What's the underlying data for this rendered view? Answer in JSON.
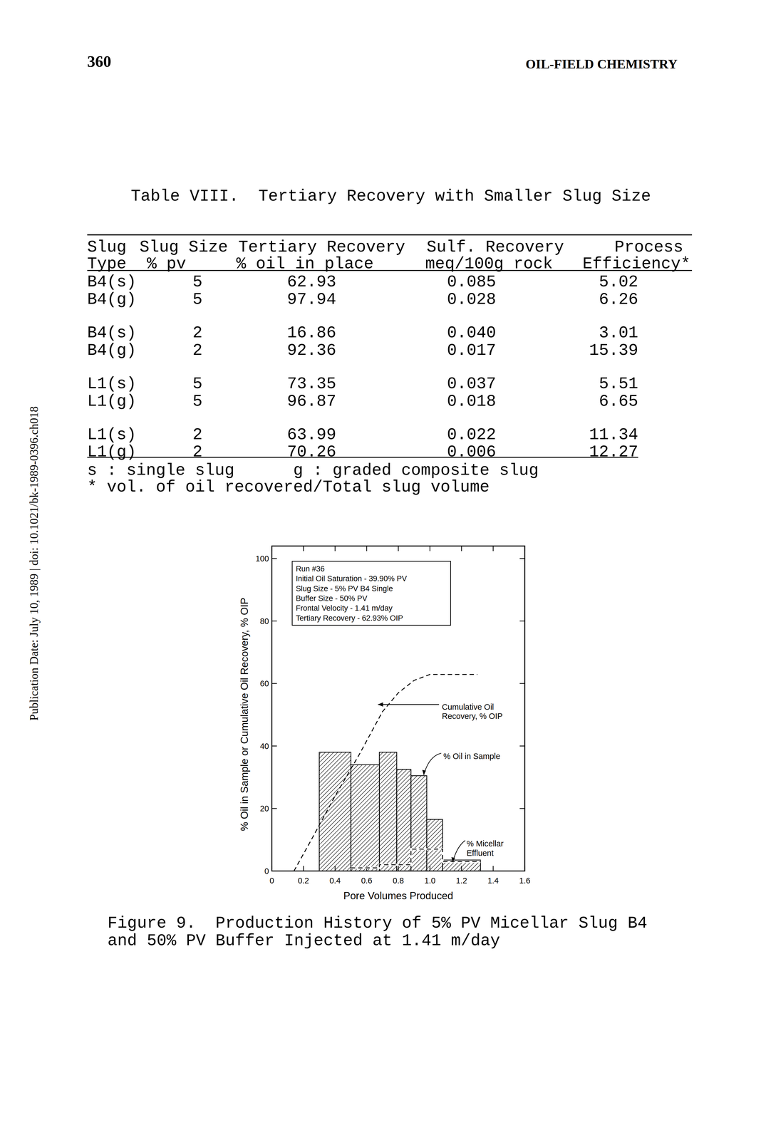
{
  "header": {
    "page_number": "360",
    "running_title": "OIL-FIELD CHEMISTRY"
  },
  "side_note": "Publication Date: July 10, 1989 | doi: 10.1021/bk-1989-0396.ch018",
  "table": {
    "title": "Table VIII.  Tertiary Recovery with Smaller Slug Size",
    "header": [
      [
        "Slug",
        "Slug Size",
        "Tertiary Recovery",
        "Sulf. Recovery",
        "Process"
      ],
      [
        "Type",
        "% pv",
        "% oil in place",
        "meq/100g rock",
        "Efficiency*"
      ]
    ],
    "rows": [
      [
        "B4(s)",
        "5",
        "62.93",
        "0.085",
        "5.02"
      ],
      [
        "B4(g)",
        "5",
        "97.94",
        "0.028",
        "6.26"
      ],
      [
        "B4(s)",
        "2",
        "16.86",
        "0.040",
        "3.01"
      ],
      [
        "B4(g)",
        "2",
        "92.36",
        "0.017",
        "15.39"
      ],
      [
        "L1(s)",
        "5",
        "73.35",
        "0.037",
        "5.51"
      ],
      [
        "L1(g)",
        "5",
        "96.87",
        "0.018",
        "6.65"
      ],
      [
        "L1(s)",
        "2",
        "63.99",
        "0.022",
        "11.34"
      ],
      [
        "L1(g)",
        "2",
        "70.26",
        "0.006",
        "12.27"
      ]
    ],
    "footnotes": [
      "s : single slug      g : graded composite slug",
      "* vol. of oil recovered/Total slug volume"
    ]
  },
  "chart_data": {
    "type": "histogram",
    "x_label": "Pore Volumes Produced",
    "y_label": "% Oil in Sample or Cumulative Oil Recovery, % OIP",
    "text_box": [
      "Run #36",
      "Initial Oil Saturation - 39.90% PV",
      "Slug Size - 5% PV B4 Single",
      "Buffer Size - 50% PV",
      "Frontal Velocity - 1.41 m/day",
      "Tertiary Recovery - 62.93% OIP"
    ],
    "xlim": [
      0,
      1.6
    ],
    "xticks": [
      0,
      0.2,
      0.4,
      0.6,
      0.8,
      {
        "value": 1,
        "label": "1.0"
      },
      1.2,
      1.4,
      1.6
    ],
    "ylim": [
      0,
      104
    ],
    "yticks": [
      0,
      20,
      40,
      60,
      80,
      100
    ],
    "series": [
      {
        "name": "Cumulative Oil Recovery, % OIP",
        "type": "line",
        "line_style": "dashed",
        "color": "#000000",
        "x": [
          0.14,
          0.25,
          0.4,
          0.55,
          0.7,
          0.8,
          0.9,
          1.0,
          1.3
        ],
        "values": [
          0,
          10,
          24,
          37,
          51,
          57,
          61,
          62.9,
          62.9
        ]
      },
      {
        "name": "% Oil in Sample",
        "type": "histogram",
        "color": "#000000",
        "bins": [
          0.3,
          0.5,
          0.68,
          0.79,
          0.88,
          0.98,
          1.08,
          1.32
        ],
        "values": [
          38,
          34,
          38,
          32.5,
          30.5,
          16.5,
          3.5
        ]
      },
      {
        "name": "% Micellar Effluent",
        "type": "line",
        "line_style": "dashed",
        "color": "#000000",
        "x": [
          0.5,
          0.68,
          0.68,
          0.88,
          0.88,
          1.08,
          1.08,
          1.32
        ],
        "values": [
          1,
          1,
          2,
          2,
          7,
          7,
          3,
          3
        ]
      }
    ]
  },
  "caption": [
    "Figure 9.  Production History of 5% PV Micellar Slug B4",
    "and 50% PV Buffer Injected at 1.41 m/day"
  ]
}
